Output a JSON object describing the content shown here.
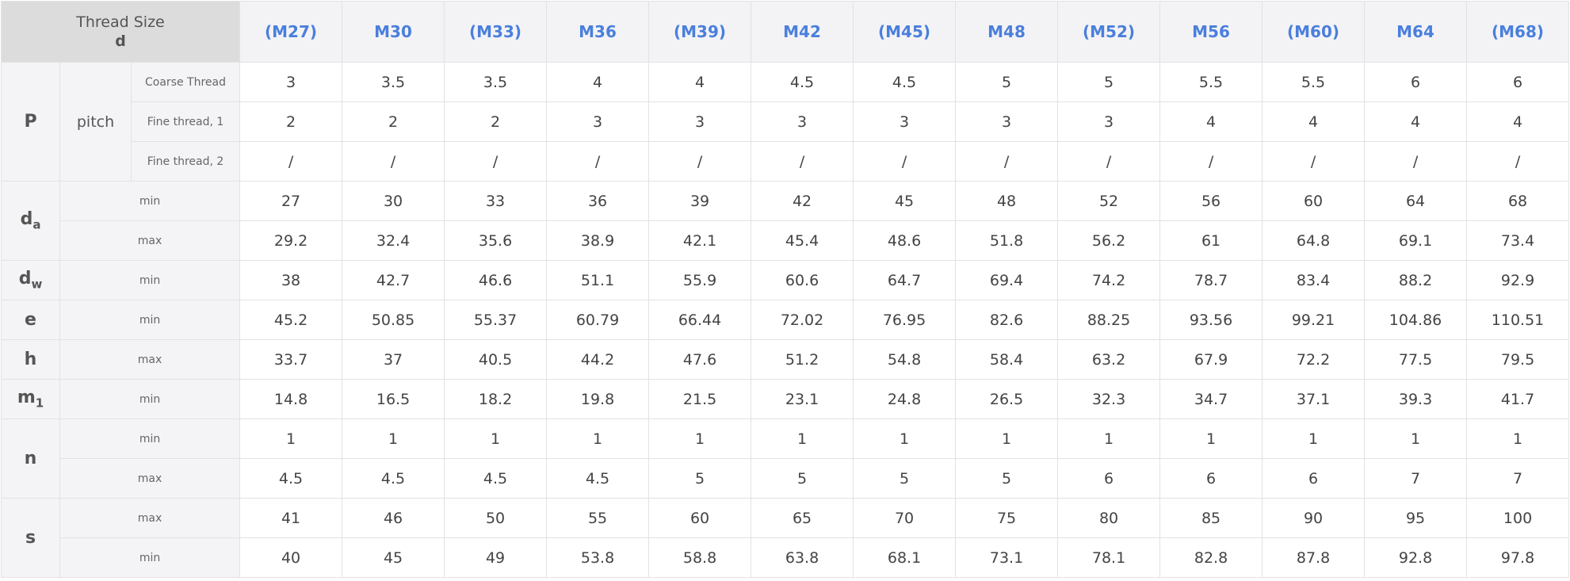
{
  "header": {
    "title": "Thread Size",
    "symbol": "d",
    "columns": [
      "(M27)",
      "M30",
      "(M33)",
      "M36",
      "(M39)",
      "M42",
      "(M45)",
      "M48",
      "(M52)",
      "M56",
      "(M60)",
      "M64",
      "(M68)"
    ]
  },
  "groups": [
    {
      "symbol": "P",
      "name": "pitch",
      "rows": [
        {
          "label": "Coarse Thread",
          "values": [
            3,
            3.5,
            3.5,
            4,
            4,
            4.5,
            4.5,
            5,
            5,
            5.5,
            5.5,
            6,
            6
          ]
        },
        {
          "label": "Fine thread, 1",
          "values": [
            2,
            2,
            2,
            3,
            3,
            3,
            3,
            3,
            3,
            4,
            4,
            4,
            4
          ]
        },
        {
          "label": "Fine thread, 2",
          "values": [
            "/",
            "/",
            "/",
            "/",
            "/",
            "/",
            "/",
            "/",
            "/",
            "/",
            "/",
            "/",
            "/"
          ]
        }
      ]
    },
    {
      "symbol": "d",
      "sub": "a",
      "rows": [
        {
          "label": "min",
          "values": [
            27,
            30,
            33,
            36,
            39,
            42,
            45,
            48,
            52,
            56,
            60,
            64,
            68
          ]
        },
        {
          "label": "max",
          "values": [
            29.2,
            32.4,
            35.6,
            38.9,
            42.1,
            45.4,
            48.6,
            51.8,
            56.2,
            61,
            64.8,
            69.1,
            73.4
          ]
        }
      ]
    },
    {
      "symbol": "d",
      "sub": "w",
      "rows": [
        {
          "label": "min",
          "values": [
            38,
            42.7,
            46.6,
            51.1,
            55.9,
            60.6,
            64.7,
            69.4,
            74.2,
            78.7,
            83.4,
            88.2,
            92.9
          ]
        }
      ]
    },
    {
      "symbol": "e",
      "rows": [
        {
          "label": "min",
          "values": [
            45.2,
            50.85,
            55.37,
            60.79,
            66.44,
            72.02,
            76.95,
            82.6,
            88.25,
            93.56,
            99.21,
            104.86,
            110.51
          ]
        }
      ]
    },
    {
      "symbol": "h",
      "rows": [
        {
          "label": "max",
          "values": [
            33.7,
            37,
            40.5,
            44.2,
            47.6,
            51.2,
            54.8,
            58.4,
            63.2,
            67.9,
            72.2,
            77.5,
            79.5
          ]
        }
      ]
    },
    {
      "symbol": "m",
      "sub": "1",
      "rows": [
        {
          "label": "min",
          "values": [
            14.8,
            16.5,
            18.2,
            19.8,
            21.5,
            23.1,
            24.8,
            26.5,
            32.3,
            34.7,
            37.1,
            39.3,
            41.7
          ]
        }
      ]
    },
    {
      "symbol": "n",
      "rows": [
        {
          "label": "min",
          "values": [
            1,
            1,
            1,
            1,
            1,
            1,
            1,
            1,
            1,
            1,
            1,
            1,
            1
          ]
        },
        {
          "label": "max",
          "values": [
            4.5,
            4.5,
            4.5,
            4.5,
            5,
            5,
            5,
            5,
            6,
            6,
            6,
            7,
            7
          ]
        }
      ]
    },
    {
      "symbol": "s",
      "rows": [
        {
          "label": "max",
          "values": [
            41,
            46,
            50,
            55,
            60,
            65,
            70,
            75,
            80,
            85,
            90,
            95,
            100
          ]
        },
        {
          "label": "min",
          "values": [
            40,
            45,
            49,
            53.8,
            58.8,
            63.8,
            68.1,
            73.1,
            78.1,
            82.8,
            87.8,
            92.8,
            97.8
          ]
        }
      ]
    }
  ]
}
